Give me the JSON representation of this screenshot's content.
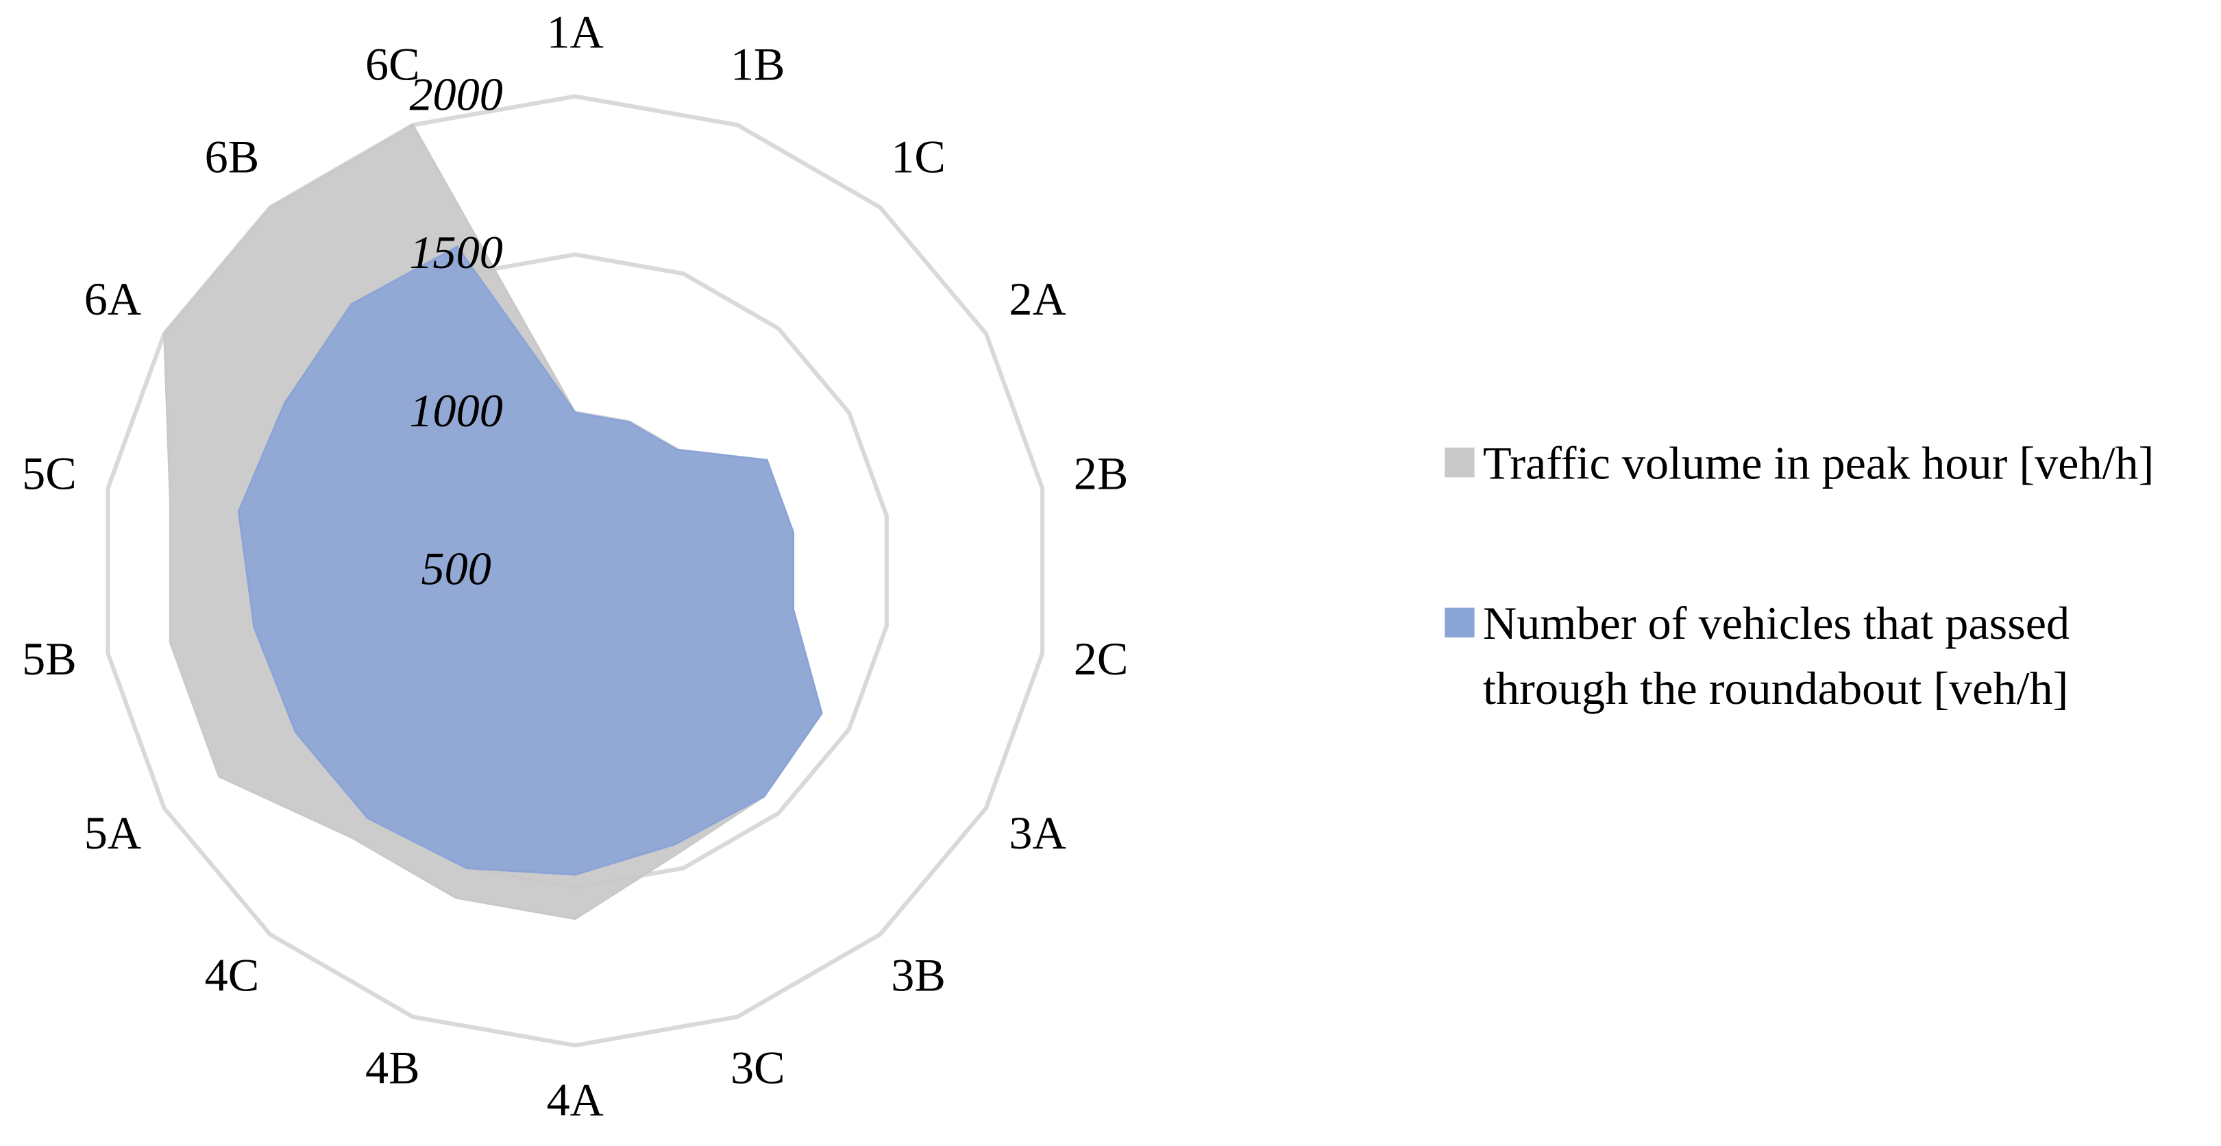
{
  "chart_data": {
    "type": "radar",
    "categories": [
      "1A",
      "1B",
      "1C",
      "2A",
      "2B",
      "2C",
      "3A",
      "3B",
      "3C",
      "4A",
      "4B",
      "4C",
      "5A",
      "5B",
      "5C",
      "6A",
      "6B",
      "6C"
    ],
    "series": [
      {
        "name": "Traffic volume in peak hour [veh/h]",
        "color": "#c9c9c9",
        "values": [
          1000,
          1000,
          1000,
          1200,
          1200,
          1200,
          1400,
          1430,
          1450,
          1600,
          1600,
          1600,
          1800,
          1800,
          1800,
          2000,
          2000,
          2000
        ]
      },
      {
        "name": "Number of vehicles that passed through the roundabout [veh/h]",
        "color": "#8ba4d6",
        "values": [
          1000,
          1000,
          1000,
          1200,
          1200,
          1200,
          1400,
          1430,
          1420,
          1460,
          1500,
          1520,
          1520,
          1530,
          1580,
          1560,
          1600,
          1590
        ]
      }
    ],
    "rlim": [
      500,
      2000
    ],
    "rticks": [
      500,
      1000,
      1500,
      2000
    ],
    "grid": true,
    "legend": "right"
  }
}
